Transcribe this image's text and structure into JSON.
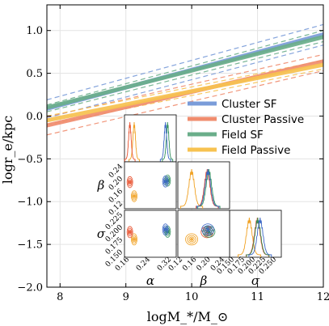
{
  "chart_data": [
    {
      "type": "line",
      "xlabel": "logM_*/M_⊙",
      "ylabel": "logr_e/kpc",
      "xlim": [
        7.8,
        12.0
      ],
      "ylim": [
        -2.0,
        1.3
      ],
      "xticks": [
        8,
        9,
        10,
        11,
        12
      ],
      "xtick_labels": [
        "8",
        "9",
        "10",
        "11",
        "12"
      ],
      "yticks": [
        -2.0,
        -1.5,
        -1.0,
        -0.5,
        0.0,
        0.5,
        1.0
      ],
      "ytick_labels": [
        "−2.0",
        "−1.5",
        "−1.0",
        "−0.5",
        "0.0",
        "0.5",
        "1.0"
      ],
      "grid": true,
      "legend_position": "center-right",
      "series": [
        {
          "name": "Cluster SF",
          "color": "#7a9cd9",
          "x": [
            7.8,
            12.0
          ],
          "y": [
            0.085,
            0.955
          ],
          "bounds": [
            {
              "x": [
                7.8,
                12.0
              ],
              "y": [
                0.19,
                1.07
              ]
            },
            {
              "x": [
                7.8,
                12.0
              ],
              "y": [
                -0.02,
                0.83
              ]
            }
          ]
        },
        {
          "name": "Cluster Passive",
          "color": "#f08c6e",
          "x": [
            7.8,
            12.0
          ],
          "y": [
            -0.11,
            0.64
          ],
          "bounds": [
            {
              "x": [
                7.8,
                12.0
              ],
              "y": [
                -0.01,
                0.72
              ]
            },
            {
              "x": [
                7.8,
                12.0
              ],
              "y": [
                -0.22,
                0.53
              ]
            }
          ]
        },
        {
          "name": "Field SF",
          "color": "#6aae8a",
          "x": [
            7.8,
            12.0
          ],
          "y": [
            0.1,
            0.925
          ],
          "bounds": [
            {
              "x": [
                7.8,
                12.0
              ],
              "y": [
                0.13,
                1.0
              ]
            },
            {
              "x": [
                7.8,
                12.0
              ],
              "y": [
                0.05,
                0.87
              ]
            }
          ]
        },
        {
          "name": "Field Passive",
          "color": "#f7c250",
          "x": [
            7.8,
            12.0
          ],
          "y": [
            -0.05,
            0.6
          ],
          "bounds": [
            {
              "x": [
                7.8,
                12.0
              ],
              "y": [
                0.0,
                0.65
              ]
            },
            {
              "x": [
                7.8,
                12.0
              ],
              "y": [
                -0.1,
                0.55
              ]
            }
          ]
        }
      ]
    },
    {
      "type": "scatter",
      "subtype": "corner",
      "parameters": [
        "α",
        "β",
        "σ"
      ],
      "parameter_labels": [
        "α",
        "β",
        "σ"
      ],
      "ranges": {
        "alpha": [
          0.12,
          0.36
        ],
        "beta": [
          0.11,
          0.26
        ],
        "sigma": [
          0.145,
          0.255
        ]
      },
      "tick_labels": {
        "alpha_x": [
          "0.16",
          "0.24",
          "0.32"
        ],
        "beta_x": [
          "0.12",
          "0.16",
          "0.20",
          "0.24"
        ],
        "sigma_x": [
          "0.150",
          "0.175",
          "0.200",
          "0.225",
          "0.250"
        ],
        "beta_y": [
          "0.12",
          "0.16",
          "0.20",
          "0.24"
        ],
        "sigma_y": [
          "0.150",
          "0.175",
          "0.200",
          "0.225"
        ]
      },
      "series": [
        {
          "name": "Cluster SF",
          "color": "#3a66c4",
          "alpha": 0.31,
          "beta": 0.197,
          "sigma": 0.21
        },
        {
          "name": "Cluster Passive",
          "color": "#e8502d",
          "alpha": 0.145,
          "beta": 0.195,
          "sigma": 0.204
        },
        {
          "name": "Field SF",
          "color": "#2f8f5a",
          "alpha": 0.32,
          "beta": 0.2,
          "sigma": 0.205
        },
        {
          "name": "Field Passive",
          "color": "#f0a020",
          "alpha": 0.165,
          "beta": 0.15,
          "sigma": 0.187
        }
      ]
    }
  ],
  "legend": {
    "items": [
      {
        "label": "Cluster SF",
        "color": "#7a9cd9"
      },
      {
        "label": "Cluster Passive",
        "color": "#f08c6e"
      },
      {
        "label": "Field SF",
        "color": "#6aae8a"
      },
      {
        "label": "Field Passive",
        "color": "#f7c250"
      }
    ]
  }
}
